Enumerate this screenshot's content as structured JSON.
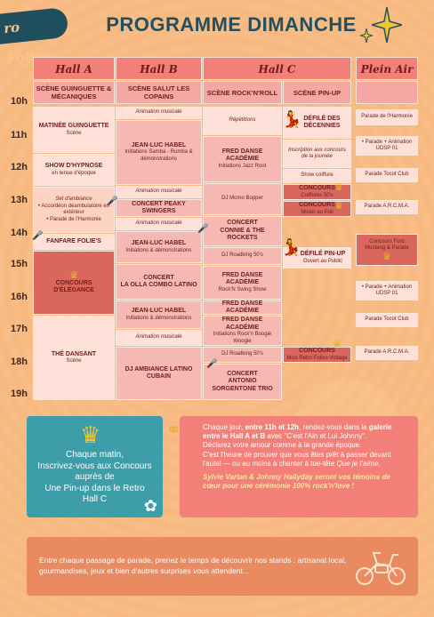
{
  "brand": {
    "logo": "ro Folies"
  },
  "header": {
    "title": "PROGRAMME DIMANCHE"
  },
  "hours": [
    "10h",
    "11h",
    "12h",
    "13h",
    "14h",
    "15h",
    "16h",
    "17h",
    "18h",
    "19h"
  ],
  "columns": {
    "hall_a": "Hall A",
    "hall_b": "Hall B",
    "hall_c": "Hall C",
    "plein_air": "Plein Air"
  },
  "subheads": {
    "a": "SCÈNE GUINGUETTE & MÉCANIQUES",
    "b": "SCÈNE SALUT LES COPAINS",
    "c1": "SCÈNE ROCK'N'ROLL",
    "c2": "SCÈNE PIN-UP"
  },
  "hall_a": {
    "matinee_t": "MATINÉE GUINGUETTE",
    "matinee_s": "Scène",
    "hypnose_t": "SHOW D'HYPNOSE",
    "hypnose_s": "en tenue d'époque",
    "ambiance_1": "Set d'ambiance",
    "ambiance_2": "• Accordéon déambulatoire en extérieur",
    "ambiance_3": "• Parade de l'Harmonie",
    "fanfare_t": "FANFARE FOLIE'S",
    "concours_t": "CONCOURS D'ÉLÉGANCE",
    "the_t": "THÉ DANSANT",
    "the_s": "Scène"
  },
  "hall_b": {
    "anim1": "Animation musicale",
    "habel1_t": "JEAN-LUC HABEL",
    "habel1_s": "Initiations Samba - Rumba & démonstrations",
    "anim2": "Animation musicale",
    "peaky_t": "CONCERT PEAKY SWINGERS",
    "anim3": "Animation musicale",
    "habel2_t": "JEAN-LUC HABEL",
    "habel2_s": "Initiations & démonstrations",
    "olla_t1": "CONCERT",
    "olla_t2": "LA OLLA COMBO LATINO",
    "habel3_t": "JEAN-LUC HABEL",
    "habel3_s": "Initiations & démonstrations",
    "anim4": "Animation musicale",
    "dj_t": "DJ AMBIANCE LATINO CUBAIN"
  },
  "hall_c1": {
    "rep": "Répétitions",
    "fred1_t": "FRED DANSE ACADÉMIE",
    "fred1_s": "Initiations Jazz Root",
    "dj1": "DJ Momo Bopper",
    "connie_t1": "CONCERT",
    "connie_t2": "CONNIE & THE ROCKETS",
    "dj2": "DJ Roadking 50's",
    "fred2_t": "FRED DANSE ACADÉMIE",
    "fred2_s": "Rock'N Swing Show",
    "fred3_t": "FRED DANSE ACADÉMIE",
    "fred4_t": "FRED DANSE ACADÉMIE",
    "fred4_s": "Initiations Rock'n Boogie Woogie",
    "dj3": "DJ Roadking 50's",
    "antonio_t1": "CONCERT",
    "antonio_t2": "ANTONIO SORGENTONE TRIO"
  },
  "hall_c2": {
    "defile1_t": "DÉFILÉ DES DÉCENNIES",
    "inscr": "Inscription aux concours de la journée",
    "coiffure": "Show coiffure",
    "cc1_t": "CONCOURS",
    "cc1_s": "Coiffures 50's",
    "cc2_t": "CONCOURS",
    "cc2_s": "Mister au Poil",
    "defile2_t": "DÉFILÉ PIN-UP",
    "defile2_s": "Ouvert au Public",
    "cc3_t": "CONCOURS",
    "cc3_s": "Miss Retro Folies Vintage"
  },
  "plein_air": {
    "p1": "Parade de l'Harmonie",
    "p2": "• Parade + Animation UDSP 01",
    "p3": "Parade Tocot Club",
    "p4": "Parade A.R.C.M.A.",
    "p5": "Concours Ford Mustang & Parade",
    "p6": "• Parade + Animation UDSP 01",
    "p7": "Parade Tocot Club",
    "p8": "Parade A.R.C.M.A."
  },
  "teal_box": {
    "l1": "Chaque matin,",
    "l2": "Inscrivez-vous aux Concours",
    "l3": "auprès de",
    "l4": "Une Pin-up dans le Retro",
    "l5": "Hall C"
  },
  "pink_box": {
    "a1": "Chaque jour, ",
    "a2": "entre 11h et 12h",
    "a3": ", rendez-vous dans la ",
    "a4": "galerie entre le Hall A et B",
    "a5": " avec \"C'est l'Ain et Lui Johnny\".",
    "b": "Déclarez votre amour comme à la grande époque.",
    "c1": "C'est l'heure de prouver que vous êtes prêt à passer devant l'autel — ou au moins à chanter à tue-tête ",
    "c2": "Que je t'aime",
    "c3": ".",
    "d": "Sylvie Vartan & Johnny Hallyday seront vos témoins de cœur pour une cérémonie 100% rock'n'love !"
  },
  "orange_box": {
    "text": "Entre chaque passage de parade, prenez le temps de découvrir nos stands : artisanat local, gourmandises, jeux et bien d'autres surprises vous attendent..."
  },
  "icons": [
    "crown-icon",
    "microphone-icon",
    "pinup-silhouette-icon",
    "sparkle-icon",
    "rings-icon",
    "flower-icon",
    "moped-icon"
  ],
  "colors": {
    "title": "#24505e",
    "header": "#f27f78",
    "teal": "#3d9da8",
    "pink": "#f27f78",
    "orange": "#e98a60",
    "bg": "#f8b980"
  }
}
